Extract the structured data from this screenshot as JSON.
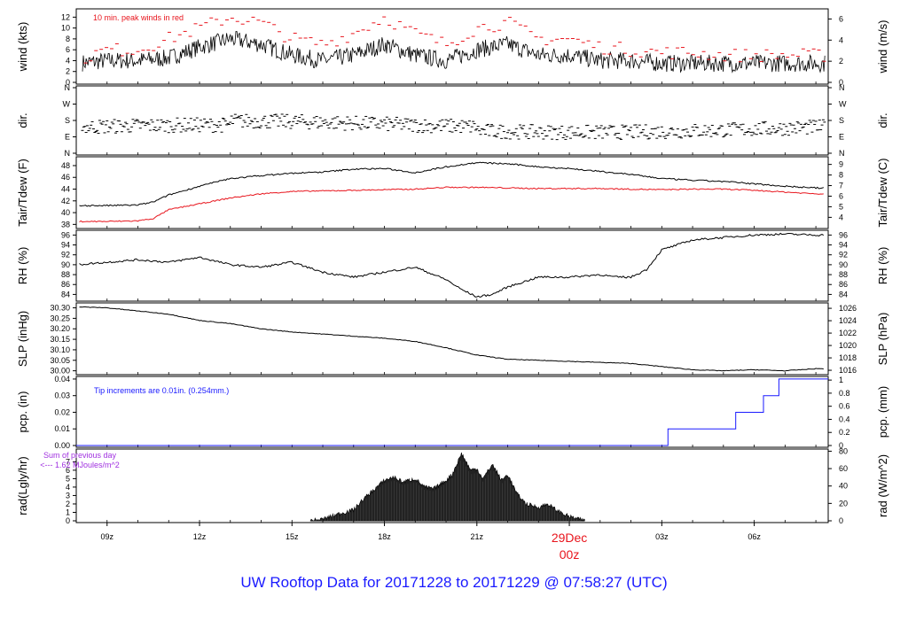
{
  "title": "UW Rooftop Data for 20171228  to  20171229 @ 07:58:27  (UTC)",
  "colors": {
    "axis": "#000000",
    "red": "#e8141c",
    "blue": "#1a1aff",
    "purple": "#a030e0"
  },
  "x_ticks": [
    "09z",
    "12z",
    "15z",
    "18z",
    "21z",
    "29Dec",
    "03z",
    "06z"
  ],
  "date_label": {
    "day": "29Dec",
    "hour": "00z"
  },
  "chart_data": [
    {
      "type": "line",
      "name": "wind",
      "ylabel_left": "wind (kts)",
      "ylabel_right": "wind (m/s)",
      "annotation": "10 min. peak winds in red",
      "yticks_left": [
        "0",
        "2",
        "4",
        "6",
        "8",
        "10",
        "12"
      ],
      "yticks_right": [
        "0",
        "2",
        "4",
        "6"
      ],
      "x_hours": [
        8,
        9,
        10,
        11,
        12,
        13,
        14,
        15,
        16,
        17,
        18,
        19,
        20,
        21,
        22,
        23,
        24,
        25,
        26,
        27,
        28,
        29,
        30,
        31,
        32
      ],
      "wind_kts": [
        3.5,
        4,
        4,
        4.5,
        6.5,
        8,
        7,
        5,
        4,
        5,
        7,
        5,
        4,
        6,
        7,
        5,
        5,
        4,
        4,
        3.5,
        3.5,
        3.5,
        3.5,
        3.5,
        3.5
      ],
      "peak_kts": [
        4,
        6,
        6,
        8,
        10,
        12,
        11,
        8,
        7,
        9,
        12,
        9,
        7,
        10,
        11,
        8,
        8,
        6.5,
        6,
        5.5,
        5.5,
        5,
        5,
        5,
        5
      ],
      "ylim": [
        0,
        13
      ]
    },
    {
      "type": "scatter",
      "name": "dir",
      "ylabel_left": "dir.",
      "ylabel_right": "dir.",
      "yticks_left": [
        "N",
        "W",
        "S",
        "E",
        "N"
      ],
      "yticks_right": [
        "N",
        "W",
        "S",
        "E",
        "N"
      ]
    },
    {
      "type": "line",
      "name": "temp",
      "ylabel_left": "Tair/Tdew (F)",
      "ylabel_right": "Tair/Tdew (C)",
      "yticks_left": [
        "38",
        "40",
        "42",
        "44",
        "46",
        "48"
      ],
      "yticks_right": [
        "4",
        "5",
        "6",
        "7",
        "8",
        "9"
      ],
      "x_hours": [
        8,
        9,
        10,
        10.5,
        11,
        12,
        13,
        14,
        15,
        16,
        17,
        18,
        19,
        20,
        21,
        22,
        23,
        24,
        25,
        26,
        27,
        28,
        29,
        30,
        31,
        32
      ],
      "tair_f": [
        41.2,
        41.2,
        41.3,
        41.8,
        43,
        44.5,
        45.8,
        46.3,
        46.7,
        46.9,
        47.4,
        47.5,
        46.8,
        47.8,
        48.5,
        48.3,
        47.8,
        47.5,
        47.0,
        46.5,
        45.8,
        45.5,
        45.3,
        44.9,
        44.5,
        44.2
      ],
      "tdew_f": [
        38.5,
        38.5,
        38.6,
        39,
        40.5,
        41.5,
        42.5,
        43.2,
        43.6,
        43.7,
        43.8,
        43.9,
        44,
        44.3,
        44.3,
        44.2,
        44.1,
        44.1,
        44.1,
        44,
        43.9,
        44,
        44,
        43.8,
        43.5,
        43.2
      ],
      "ylim": [
        37.5,
        49
      ]
    },
    {
      "type": "line",
      "name": "rh",
      "ylabel_left": "RH (%)",
      "ylabel_right": "RH (%)",
      "yticks_left": [
        "84",
        "86",
        "88",
        "90",
        "92",
        "94",
        "96"
      ],
      "yticks_right": [
        "84",
        "86",
        "88",
        "90",
        "92",
        "94",
        "96"
      ],
      "x_hours": [
        8,
        9,
        10,
        11,
        12,
        13,
        14,
        15,
        16,
        17,
        18,
        19,
        20,
        20.5,
        21,
        21.5,
        22,
        23,
        24,
        25,
        25.5,
        26,
        26.5,
        27,
        28,
        29,
        30,
        31,
        32
      ],
      "rh": [
        90,
        90.5,
        91,
        90.5,
        91.5,
        90,
        89.5,
        90.5,
        88.5,
        87.5,
        88.5,
        89.5,
        87,
        85,
        83.5,
        84,
        85.5,
        87.5,
        87.5,
        88,
        87.5,
        87.5,
        89,
        93,
        95,
        95.5,
        96,
        96.2,
        96
      ],
      "ylim": [
        83,
        96.5
      ]
    },
    {
      "type": "line",
      "name": "slp",
      "ylabel_left": "SLP (inHg)",
      "ylabel_right": "SLP (hPa)",
      "yticks_left": [
        "30.00",
        "30.05",
        "30.10",
        "30.15",
        "30.20",
        "30.25",
        "30.30"
      ],
      "yticks_right": [
        "1016",
        "1018",
        "1020",
        "1022",
        "1024",
        "1026"
      ],
      "x_hours": [
        8,
        9,
        10,
        11,
        12,
        13,
        14,
        15,
        16,
        17,
        18,
        19,
        20,
        21,
        22,
        23,
        24,
        25,
        26,
        27,
        28,
        29,
        30,
        31,
        32
      ],
      "slp_inhg": [
        30.305,
        30.3,
        30.285,
        30.27,
        30.24,
        30.225,
        30.2,
        30.185,
        30.175,
        30.165,
        30.155,
        30.14,
        30.11,
        30.075,
        30.055,
        30.05,
        30.045,
        30.04,
        30.035,
        30.02,
        30.005,
        30.0,
        30.005,
        30.0,
        30.01
      ],
      "ylim": [
        29.99,
        30.315
      ]
    },
    {
      "type": "line",
      "name": "pcp",
      "ylabel_left": "pcp. (in)",
      "ylabel_right": "pcp. (mm)",
      "annotation": "Tip increments are 0.01in. (0.254mm.)",
      "yticks_left": [
        "0.00",
        "0.01",
        "0.02",
        "0.03",
        "0.04"
      ],
      "yticks_right": [
        "0",
        "0.2",
        "0.4",
        "0.6",
        "0.8",
        "1"
      ],
      "x_hours": [
        8,
        27.2,
        27.2,
        29.4,
        29.4,
        30.3,
        30.3,
        30.8,
        30.8,
        32.4
      ],
      "pcp_in": [
        0,
        0,
        0.01,
        0.01,
        0.02,
        0.02,
        0.03,
        0.03,
        0.04,
        0.04
      ],
      "ylim": [
        0,
        0.04
      ]
    },
    {
      "type": "area",
      "name": "rad",
      "ylabel_left": "rad(Lgly/hr)",
      "ylabel_right": "rad (W/m^2)",
      "annotation_line1": "Sum of previous day",
      "annotation_line2": "<--- 1.62 MJoules/m^2",
      "yticks_left": [
        "0",
        "1",
        "2",
        "3",
        "4",
        "5",
        "6",
        "7"
      ],
      "yticks_right": [
        "0",
        "20",
        "40",
        "60",
        "80"
      ],
      "x_hours": [
        15.6,
        16,
        16.5,
        17,
        17.3,
        17.6,
        18,
        18.3,
        18.6,
        19,
        19.3,
        19.6,
        20,
        20.2,
        20.5,
        20.8,
        21,
        21.2,
        21.5,
        21.8,
        22,
        22.3,
        22.6,
        23,
        23.3,
        23.6,
        24,
        24.3,
        24.5
      ],
      "rad": [
        0,
        0.2,
        0.8,
        1.3,
        2.5,
        3.5,
        4.8,
        5.2,
        4.6,
        5.0,
        4.0,
        3.8,
        4.8,
        5.5,
        8.0,
        6.0,
        6.2,
        5.0,
        6.7,
        4.8,
        5.5,
        3.2,
        2.0,
        1.6,
        2.0,
        1.2,
        0.5,
        0.2,
        0
      ],
      "ylim": [
        0,
        8.3
      ]
    }
  ]
}
